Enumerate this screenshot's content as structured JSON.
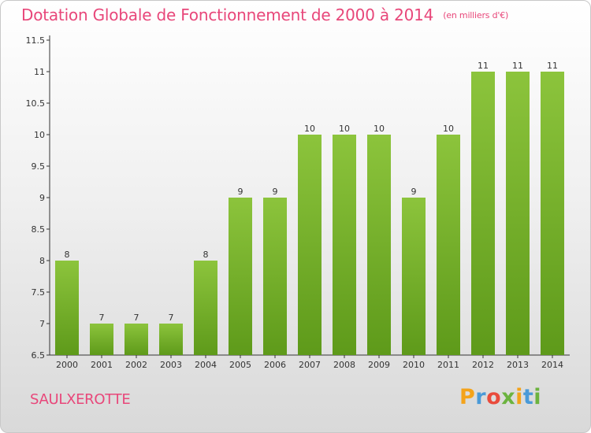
{
  "chart_data": {
    "type": "bar",
    "title": "Dotation Globale de Fonctionnement de 2000 à 2014",
    "unit_note": "(en milliers d'€)",
    "categories": [
      "2000",
      "2001",
      "2002",
      "2003",
      "2004",
      "2005",
      "2006",
      "2007",
      "2008",
      "2009",
      "2010",
      "2011",
      "2012",
      "2013",
      "2014"
    ],
    "values": [
      8,
      7,
      7,
      7,
      8,
      9,
      9,
      10,
      10,
      10,
      9,
      10,
      11,
      11,
      11
    ],
    "ylim": [
      6.5,
      11.5
    ],
    "yticks": [
      "6.5",
      "7",
      "7.5",
      "8",
      "8.5",
      "9",
      "9.5",
      "10",
      "10.5",
      "11",
      "11.5"
    ],
    "grid": false,
    "bar_color": "#8cc43c",
    "bar_color_dark": "#5e9a1a"
  },
  "footer": {
    "city": "SAULXEROTTE",
    "brand": [
      "P",
      "r",
      "o",
      "x",
      "i",
      "t",
      "i"
    ],
    "brand_colors": [
      "#f4a31a",
      "#4a9ad8",
      "#e94b3c",
      "#6cb33f",
      "#f4a31a",
      "#4a9ad8",
      "#6cb33f"
    ]
  }
}
